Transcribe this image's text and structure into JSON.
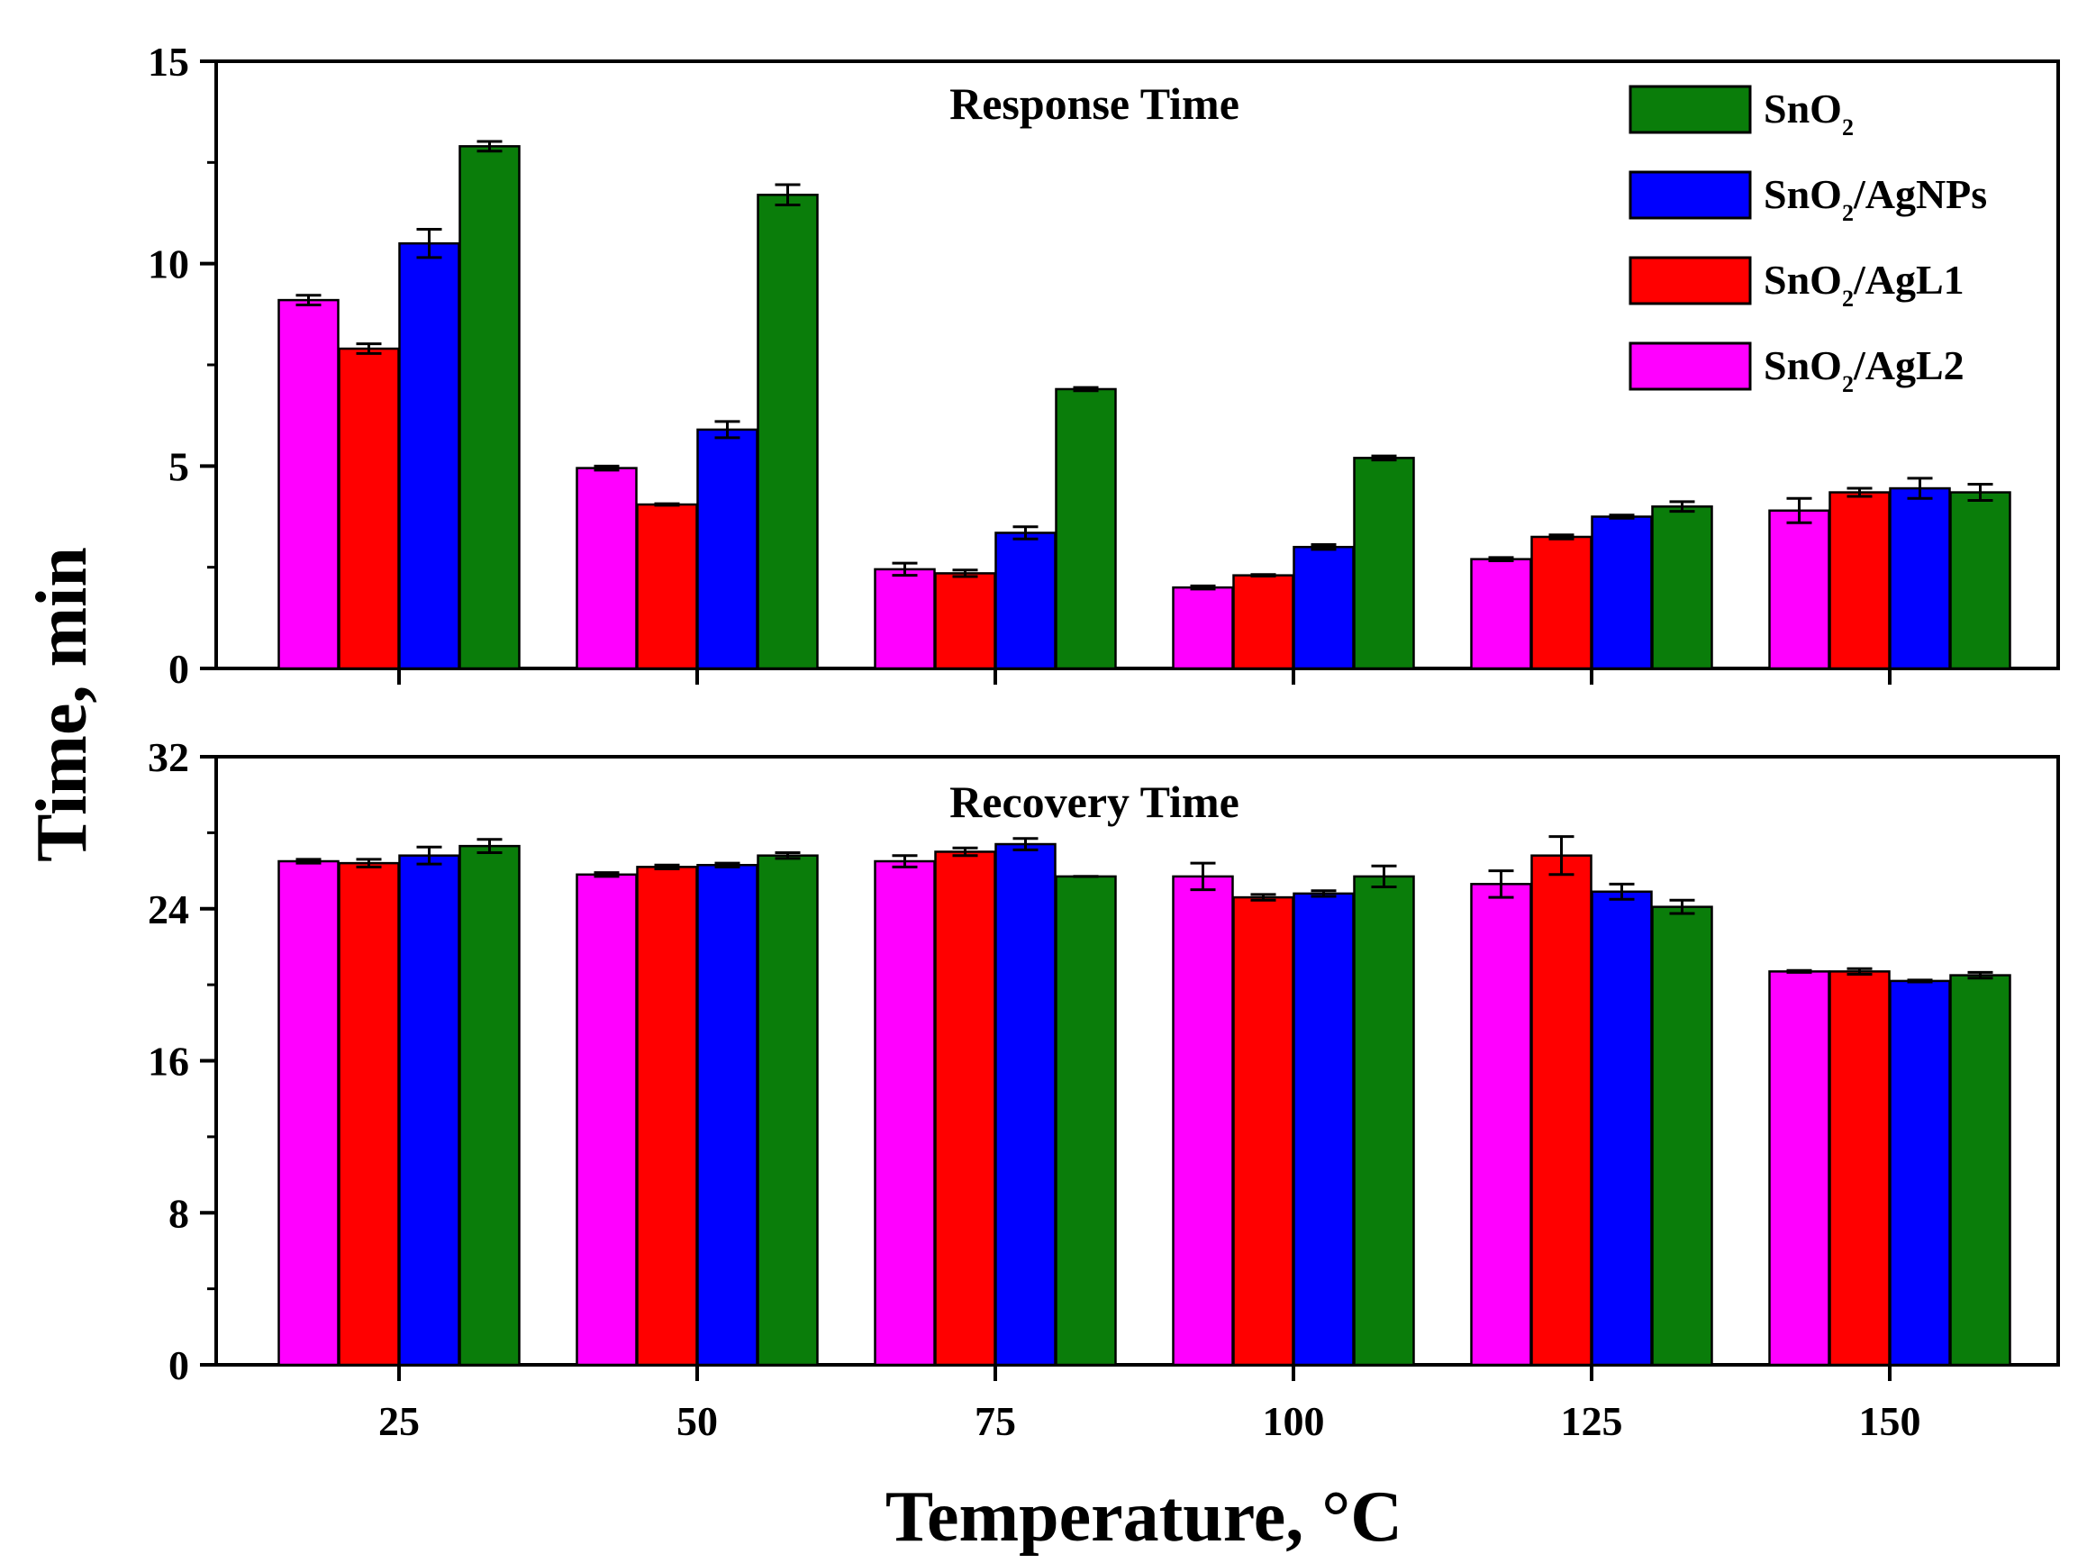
{
  "figure": {
    "ylabel": "Time, min",
    "xlabel": "Temperature, °C"
  },
  "legend": [
    {
      "label": "SnO",
      "sub": "2",
      "rest": "",
      "color": "#0a7d0a"
    },
    {
      "label": "SnO",
      "sub": "2",
      "rest": "/AgNPs",
      "color": "#0000ff"
    },
    {
      "label": "SnO",
      "sub": "2",
      "rest": "/AgL1",
      "color": "#ff0000"
    },
    {
      "label": "SnO",
      "sub": "2",
      "rest": "/AgL2",
      "color": "#ff00ff"
    }
  ],
  "chart_data": [
    {
      "type": "bar",
      "title": "Response Time",
      "categories": [
        "25",
        "50",
        "75",
        "100",
        "125",
        "150"
      ],
      "ylim": [
        0,
        15
      ],
      "yticks": [
        "0",
        "5",
        "10",
        "15"
      ],
      "series": [
        {
          "name": "SnO2/AgL2",
          "color": "#ff00ff",
          "values": [
            9.1,
            4.95,
            2.45,
            2.0,
            2.7,
            3.9
          ],
          "errors": [
            0.12,
            0.05,
            0.15,
            0.04,
            0.04,
            0.3
          ]
        },
        {
          "name": "SnO2/AgL1",
          "color": "#ff0000",
          "values": [
            7.9,
            4.05,
            2.35,
            2.3,
            3.25,
            4.35
          ],
          "errors": [
            0.12,
            0.02,
            0.08,
            0.02,
            0.05,
            0.1
          ]
        },
        {
          "name": "SnO2/AgNPs",
          "color": "#0000ff",
          "values": [
            10.5,
            5.9,
            3.35,
            3.0,
            3.75,
            4.45
          ],
          "errors": [
            0.35,
            0.2,
            0.15,
            0.06,
            0.04,
            0.25
          ]
        },
        {
          "name": "SnO2",
          "color": "#0a7d0a",
          "values": [
            12.9,
            11.7,
            6.9,
            5.2,
            4.0,
            4.35
          ],
          "errors": [
            0.12,
            0.25,
            0.04,
            0.05,
            0.12,
            0.2
          ]
        }
      ]
    },
    {
      "type": "bar",
      "title": "Recovery Time",
      "categories": [
        "25",
        "50",
        "75",
        "100",
        "125",
        "150"
      ],
      "ylim": [
        0,
        32
      ],
      "yticks": [
        "0",
        "8",
        "16",
        "24",
        "32"
      ],
      "series": [
        {
          "name": "SnO2/AgL2",
          "color": "#ff00ff",
          "values": [
            26.5,
            25.8,
            26.5,
            25.7,
            25.3,
            20.7
          ],
          "errors": [
            0.1,
            0.1,
            0.3,
            0.7,
            0.7,
            0.05
          ]
        },
        {
          "name": "SnO2/AgL1",
          "color": "#ff0000",
          "values": [
            26.4,
            26.2,
            27.0,
            24.6,
            26.8,
            20.7
          ],
          "errors": [
            0.2,
            0.1,
            0.2,
            0.15,
            1.0,
            0.15
          ]
        },
        {
          "name": "SnO2/AgNPs",
          "color": "#0000ff",
          "values": [
            26.8,
            26.3,
            27.4,
            24.8,
            24.9,
            20.2
          ],
          "errors": [
            0.45,
            0.1,
            0.3,
            0.15,
            0.4,
            0.05
          ]
        },
        {
          "name": "SnO2",
          "color": "#0a7d0a",
          "values": [
            27.3,
            26.8,
            25.7,
            25.7,
            24.1,
            20.5
          ],
          "errors": [
            0.35,
            0.15,
            0.0,
            0.55,
            0.35,
            0.15
          ]
        }
      ]
    }
  ]
}
